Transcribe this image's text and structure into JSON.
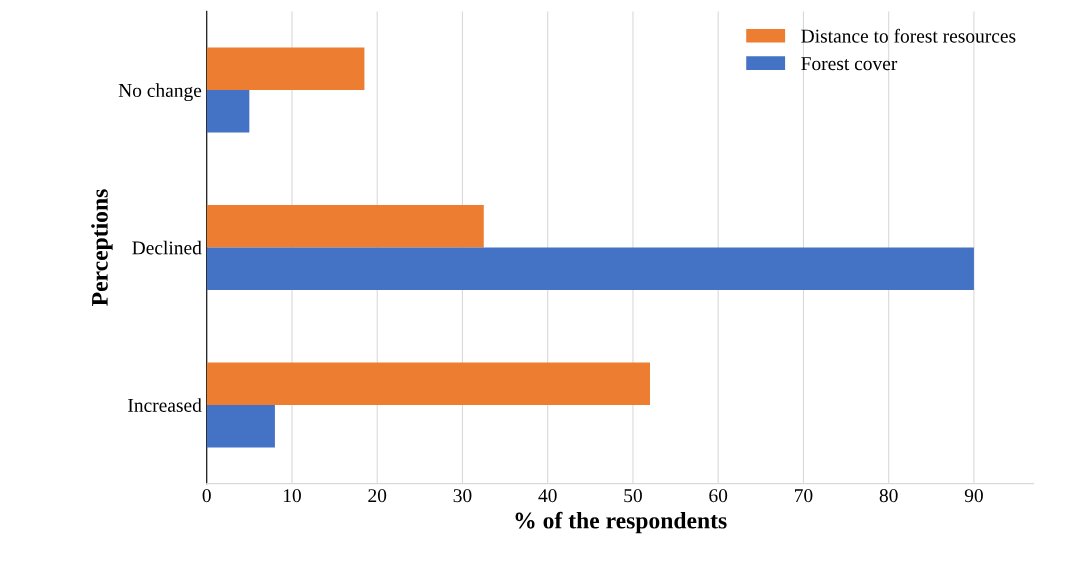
{
  "chart_data": {
    "type": "bar",
    "orientation": "horizontal",
    "ylabel": "Perceptions",
    "xlabel": "% of the respondents",
    "categories": [
      "No change",
      "Declined",
      "Increased"
    ],
    "series": [
      {
        "name": "Distance to forest resources",
        "color": "#ed7d31",
        "values": [
          18.5,
          32.5,
          52
        ]
      },
      {
        "name": "Forest cover",
        "color": "#4472c4",
        "values": [
          5,
          90,
          8
        ]
      }
    ],
    "xlim": [
      0,
      97
    ],
    "xticks": [
      0,
      10,
      20,
      30,
      40,
      50,
      60,
      70,
      80,
      90
    ],
    "grid": "x",
    "legend": "top right"
  }
}
